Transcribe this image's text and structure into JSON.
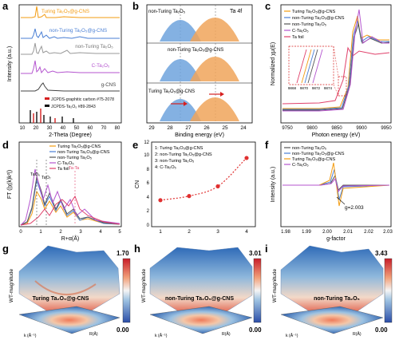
{
  "panels": {
    "a": {
      "letter": "a",
      "xlabel": "2-Theta (Degree)",
      "ylabel": "Intensity (a.u.)",
      "xticks": [
        "10",
        "20",
        "30",
        "40",
        "50",
        "60",
        "70",
        "80"
      ],
      "labels": [
        "Turing Ta₂O₅@g-CNS",
        "non-Turing Ta₂O₅@g-CNS",
        "non-Turing Ta₂O₅",
        "C-Ta₂O₅",
        "g-CNS"
      ],
      "colors": [
        "#f39c12",
        "#4a7fd4",
        "#9a9a9a",
        "#b455cf",
        "#444444"
      ],
      "refs": [
        "JCPDS-graphitic carbon #75-2078",
        "JCPDS-Ta₂O₅ #89-2843"
      ],
      "ref_colors": [
        "#d62020",
        "#111111"
      ]
    },
    "b": {
      "letter": "b",
      "title": "Ta 4f",
      "xlabel": "Binding energy (eV)",
      "xticks": [
        "29",
        "28",
        "27",
        "26",
        "25",
        "24"
      ],
      "labels": [
        "non-Turing Ta₂O₅",
        "non-Turing Ta₂O₅@g-CNS",
        "Turing Ta₂O₅@g-CNS"
      ]
    },
    "c": {
      "letter": "c",
      "xlabel": "Photon energy (eV)",
      "ylabel": "Normalized χμ(E)",
      "xticks": [
        "9750",
        "9800",
        "9850",
        "9900",
        "9950"
      ],
      "inset_ticks": [
        "9868",
        "9870",
        "9872",
        "9874"
      ],
      "legend": [
        "Turing Ta₂O₅@g-CNS",
        "non-Turing Ta₂O₅@g-CNS",
        "non-Turing Ta₂O₅",
        "C-Ta₂O₅",
        "Ta foil"
      ],
      "colors": [
        "#f39c12",
        "#4a7fd4",
        "#555555",
        "#b455cf",
        "#e0406a"
      ]
    },
    "d": {
      "letter": "d",
      "xlabel": "R+α(Å)",
      "ylabel": "FT (|χ(k)k²|)",
      "xticks": [
        "0",
        "1",
        "2",
        "3",
        "4",
        "5"
      ],
      "legend": [
        "Turing Ta₂O₅@g-CNS",
        "non-Turing Ta₂O₅@g-CNS",
        "non-Turing Ta₂O₅",
        "C-Ta₂O₅",
        "Ta foil"
      ],
      "colors": [
        "#f39c12",
        "#4a7fd4",
        "#555555",
        "#b455cf",
        "#e0406a"
      ],
      "annotations": [
        "TaO₆",
        "TaO₇",
        "Ta-Ta"
      ]
    },
    "e": {
      "letter": "e",
      "xlabel": "",
      "ylabel": "CN",
      "xticks": [
        "1",
        "2",
        "3",
        "4"
      ],
      "yticks": [
        "0",
        "2",
        "4",
        "6",
        "8",
        "10",
        "12"
      ],
      "legend": [
        "1: Turing Ta₂O₅@g-CNS",
        "2: non-Turing Ta₂O₅@g-CNS",
        "3: non-Turing Ta₂O₅",
        "4: C-Ta₂O₅"
      ]
    },
    "f": {
      "letter": "f",
      "xlabel": "g-factor",
      "ylabel": "Intensity (a.u.)",
      "xticks": [
        "1.98",
        "1.99",
        "2.00",
        "2.01",
        "2.02",
        "2.03"
      ],
      "legend": [
        "non-Turing Ta₂O₅",
        "non-Turing Ta₂O₅@g-CNS",
        "Turing Ta₂O₅@g-CNS",
        "C-Ta₂O₅"
      ],
      "colors": [
        "#555555",
        "#4a7fd4",
        "#f39c12",
        "#b455cf"
      ],
      "annotation": "g=2.003"
    },
    "g": {
      "letter": "g",
      "label": "Turing Ta₂O₅@g-CNS",
      "cmax": "1.70",
      "cmin": "0.00",
      "zlabel": "WT-magnitude",
      "axis_r": "R(Å)",
      "axis_k": "k (Å⁻¹)"
    },
    "h": {
      "letter": "h",
      "label": "non-Turing Ta₂O₅@g-CNS",
      "cmax": "3.01",
      "cmin": "0.00",
      "zlabel": "WT-magnitude",
      "axis_r": "R(Å)",
      "axis_k": "k (Å⁻¹)"
    },
    "i": {
      "letter": "i",
      "label": "non-Turing Ta₂O₅",
      "cmax": "3.43",
      "cmin": "0.00",
      "zlabel": "WT-magnitude",
      "axis_r": "R(Å)",
      "axis_k": "k (Å⁻¹)"
    }
  },
  "chart_data": [
    {
      "type": "scatter",
      "panel": "e",
      "x": [
        1,
        2,
        3,
        4
      ],
      "values": [
        3.6,
        4.2,
        5.6,
        9.7
      ],
      "ylim": [
        0,
        12
      ],
      "ylabel": "CN",
      "color": "#e03030"
    }
  ]
}
